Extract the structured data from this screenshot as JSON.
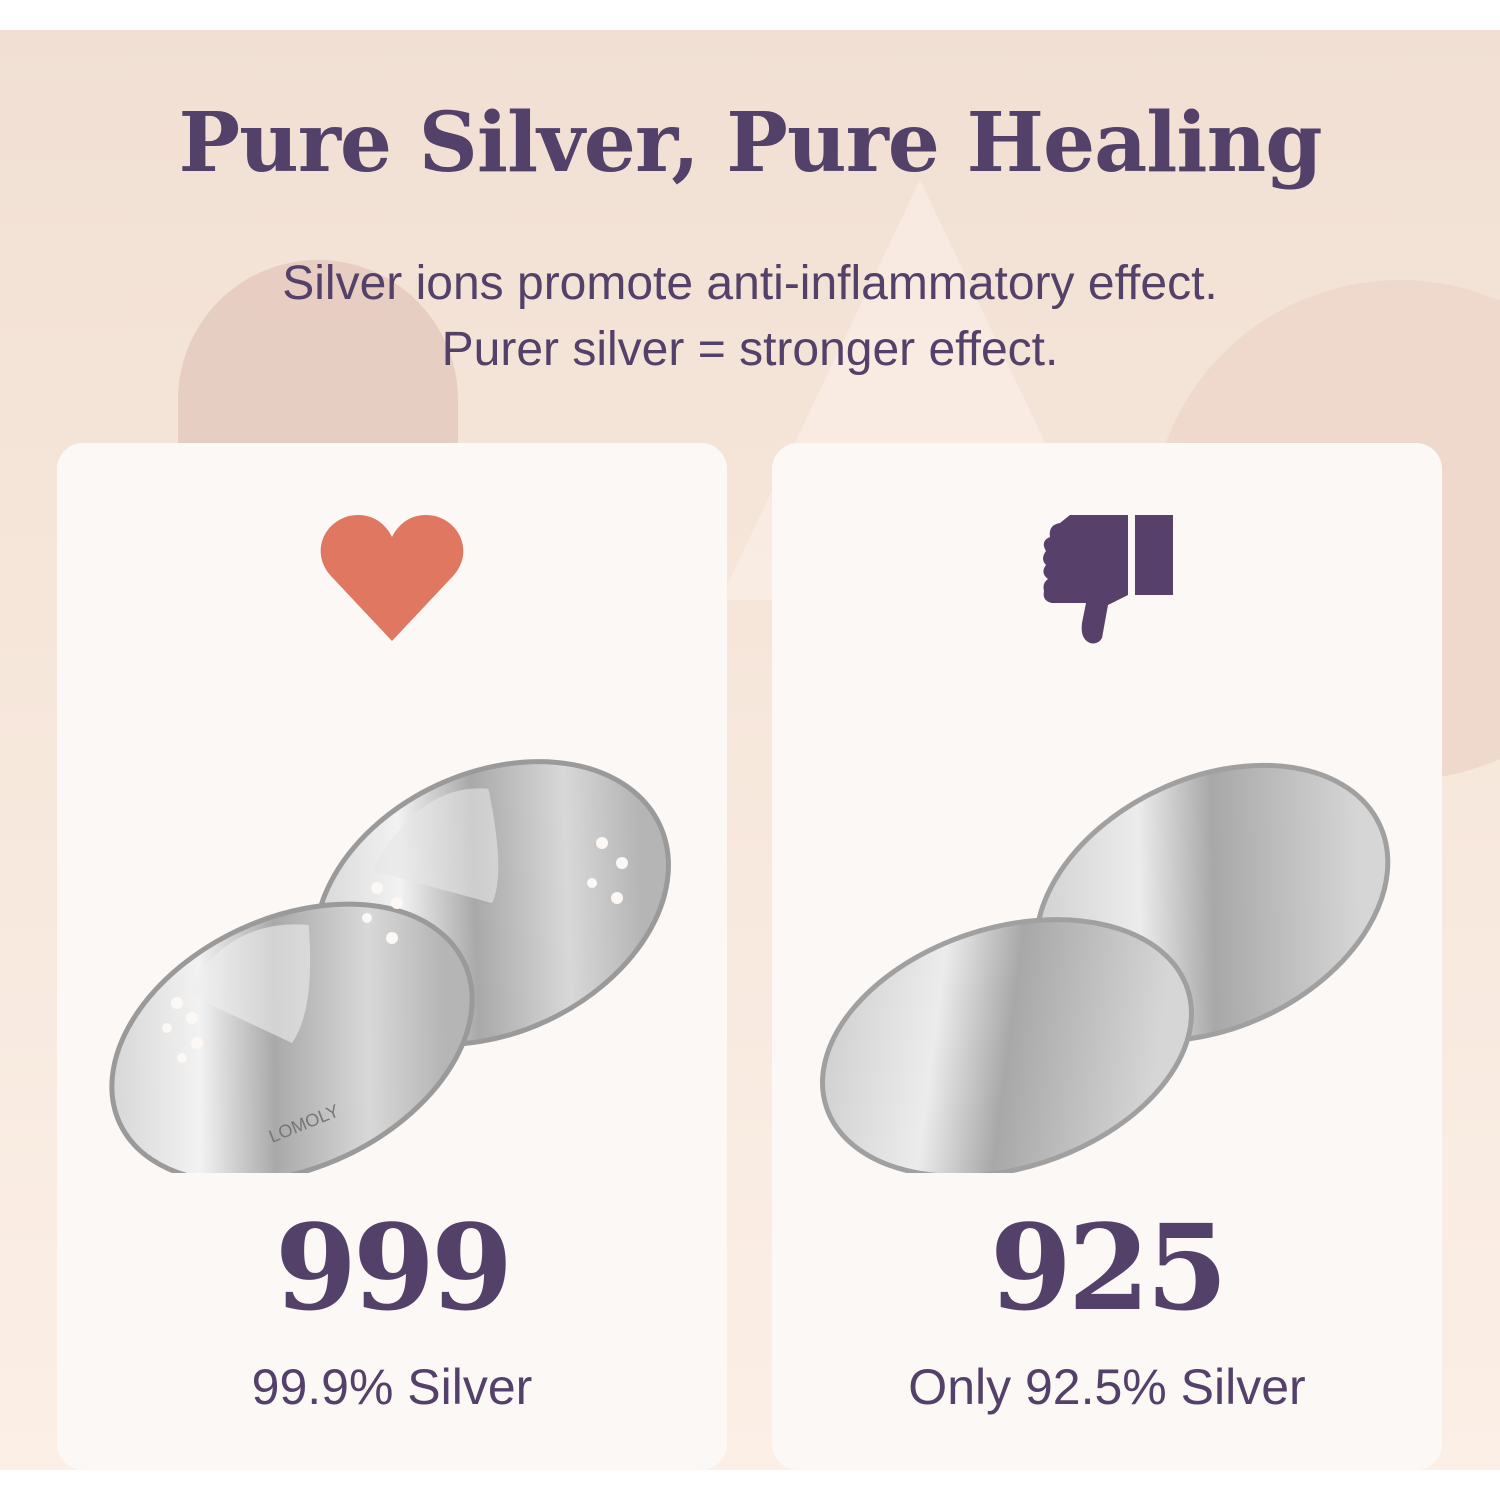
{
  "header": {
    "title": "Pure Silver, Pure Healing",
    "subtitle_line1": "Silver ions promote anti-inflammatory effect.",
    "subtitle_line2": "Purer silver = stronger effect."
  },
  "left_card": {
    "icon": "heart-icon",
    "icon_color": "#e07760",
    "purity": "999",
    "caption": "99.9% Silver",
    "brand_engraving": "LOMOLY"
  },
  "right_card": {
    "icon": "thumbs-down-icon",
    "icon_color": "#57416b",
    "purity": "925",
    "caption": "Only 92.5% Silver"
  },
  "colors": {
    "text": "#54416a",
    "card": "#fcf8f5",
    "background": "#f3e3d8"
  }
}
